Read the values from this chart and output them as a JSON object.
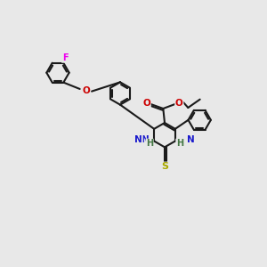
{
  "bg": "#e8e8e8",
  "bc": "#1a1a1a",
  "F_color": "#ee00ee",
  "O_color": "#cc0000",
  "N_color": "#1a1acc",
  "S_color": "#aaaa00",
  "lw": 1.5,
  "lw_thin": 1.2,
  "fs": 7.5,
  "ring_r": 0.38,
  "figsize": [
    3.0,
    3.0
  ],
  "dpi": 100,
  "xlim": [
    0,
    9
  ],
  "ylim": [
    0,
    9
  ]
}
